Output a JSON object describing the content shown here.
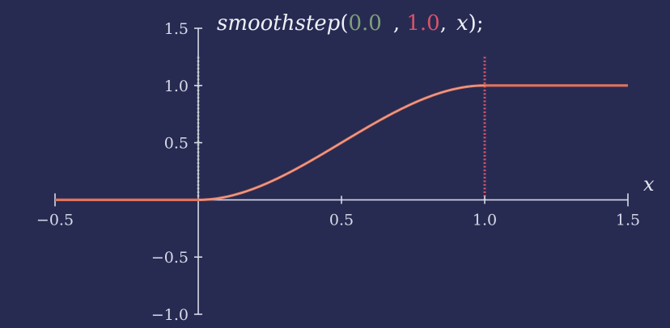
{
  "chart_data": {
    "type": "line",
    "title": {
      "func": "smoothstep",
      "open": "(",
      "edge0": "0.0",
      "sep1": ", ",
      "edge1": "1.0",
      "sep2": ",",
      "arg": "x",
      "close": ");"
    },
    "xlabel": "x",
    "ylabel": "",
    "xlim": [
      -0.5,
      1.5
    ],
    "ylim": [
      -1.0,
      1.5
    ],
    "x_ticks": [
      -0.5,
      0.5,
      1.0,
      1.5
    ],
    "x_tick_labels": [
      "−0.5",
      "0.5",
      "1.0",
      "1.5"
    ],
    "y_ticks": [
      -1.0,
      -0.5,
      0.5,
      1.0,
      1.5
    ],
    "y_tick_labels": [
      "−1.0",
      "−0.5",
      "0.5",
      "1.0",
      "1.5"
    ],
    "edge0": 0.0,
    "edge1": 1.0,
    "edge_line_top": 1.25,
    "series": [
      {
        "function": "smoothstep",
        "x": [
          -0.5,
          -0.25,
          0.0,
          0.1,
          0.2,
          0.3,
          0.4,
          0.5,
          0.6,
          0.7,
          0.8,
          0.9,
          1.0,
          1.25,
          1.5
        ],
        "y": [
          0.0,
          0.0,
          0.0,
          0.028,
          0.104,
          0.216,
          0.352,
          0.5,
          0.648,
          0.784,
          0.896,
          0.972,
          1.0,
          1.0,
          1.0
        ]
      }
    ],
    "grid": false,
    "colors": {
      "background": "#272b52",
      "axis": "#d8dae8",
      "curve": "#e0735c",
      "curve_highlight": "#f0b7a4",
      "edge0": "#7fa07a",
      "edge1": "#d9536a",
      "title": "#eef0f6"
    }
  }
}
